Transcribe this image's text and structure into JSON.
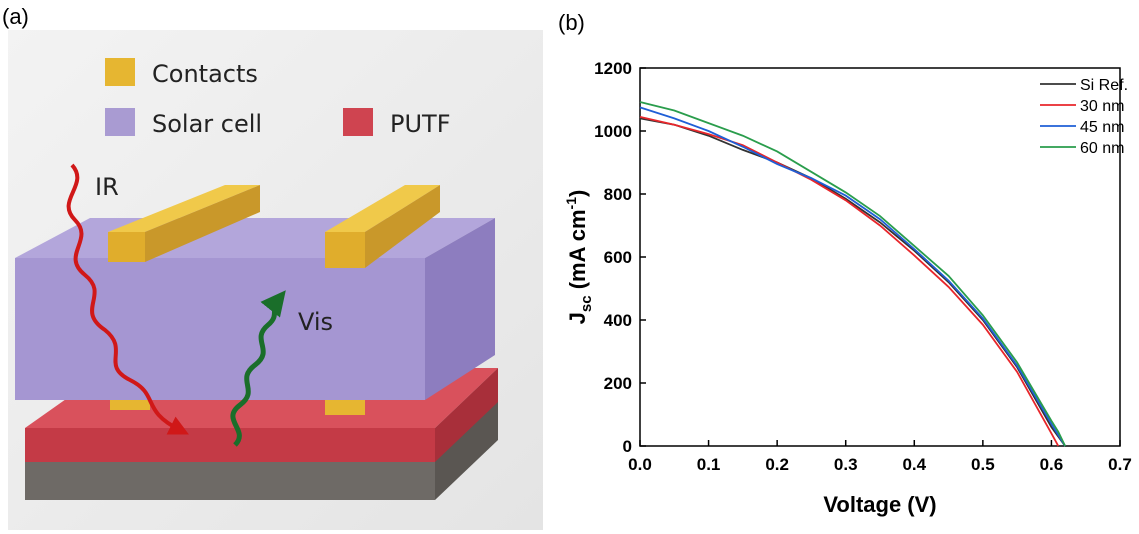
{
  "panel_a": {
    "label": "(a)",
    "legend": [
      "Contacts",
      "Solar cell",
      "PUTF"
    ],
    "arrows": [
      "IR",
      "Vis"
    ]
  },
  "panel_b": {
    "label": "(b)"
  },
  "chart_data": {
    "type": "line",
    "x_label": "Voltage (V)",
    "y_label": [
      "J",
      "sc",
      " (mA cm",
      "-1",
      ")"
    ],
    "x": [
      0,
      0.05,
      0.1,
      0.15,
      0.2,
      0.25,
      0.3,
      0.35,
      0.4,
      0.45,
      0.5,
      0.55,
      0.6,
      0.61,
      0.62
    ],
    "series": [
      {
        "name": "Si Ref.",
        "color": "#333333",
        "values": [
          1040,
          1020,
          985,
          940,
          900,
          850,
          785,
          710,
          620,
          520,
          400,
          250,
          60,
          30,
          0
        ]
      },
      {
        "name": "30 nm",
        "color": "#e8262b",
        "values": [
          1045,
          1020,
          990,
          955,
          900,
          845,
          780,
          700,
          605,
          505,
          385,
          235,
          40,
          0,
          null
        ]
      },
      {
        "name": "45 nm",
        "color": "#1f5fd6",
        "values": [
          1075,
          1040,
          1000,
          950,
          895,
          850,
          795,
          720,
          625,
          525,
          405,
          255,
          70,
          35,
          0
        ]
      },
      {
        "name": "60 nm",
        "color": "#2a9d4c",
        "values": [
          1092,
          1065,
          1025,
          985,
          935,
          870,
          805,
          730,
          635,
          540,
          415,
          265,
          80,
          45,
          0
        ]
      }
    ],
    "xlim": [
      0,
      0.7
    ],
    "xticks": [
      {
        "value": 0,
        "label": "0.0"
      },
      0.1,
      0.2,
      0.3,
      0.4,
      0.5,
      0.6,
      0.7
    ],
    "ylim": [
      0,
      1200
    ],
    "yticks": [
      0,
      200,
      400,
      600,
      800,
      1000,
      1200
    ],
    "grid": false,
    "legend": "top-right"
  }
}
